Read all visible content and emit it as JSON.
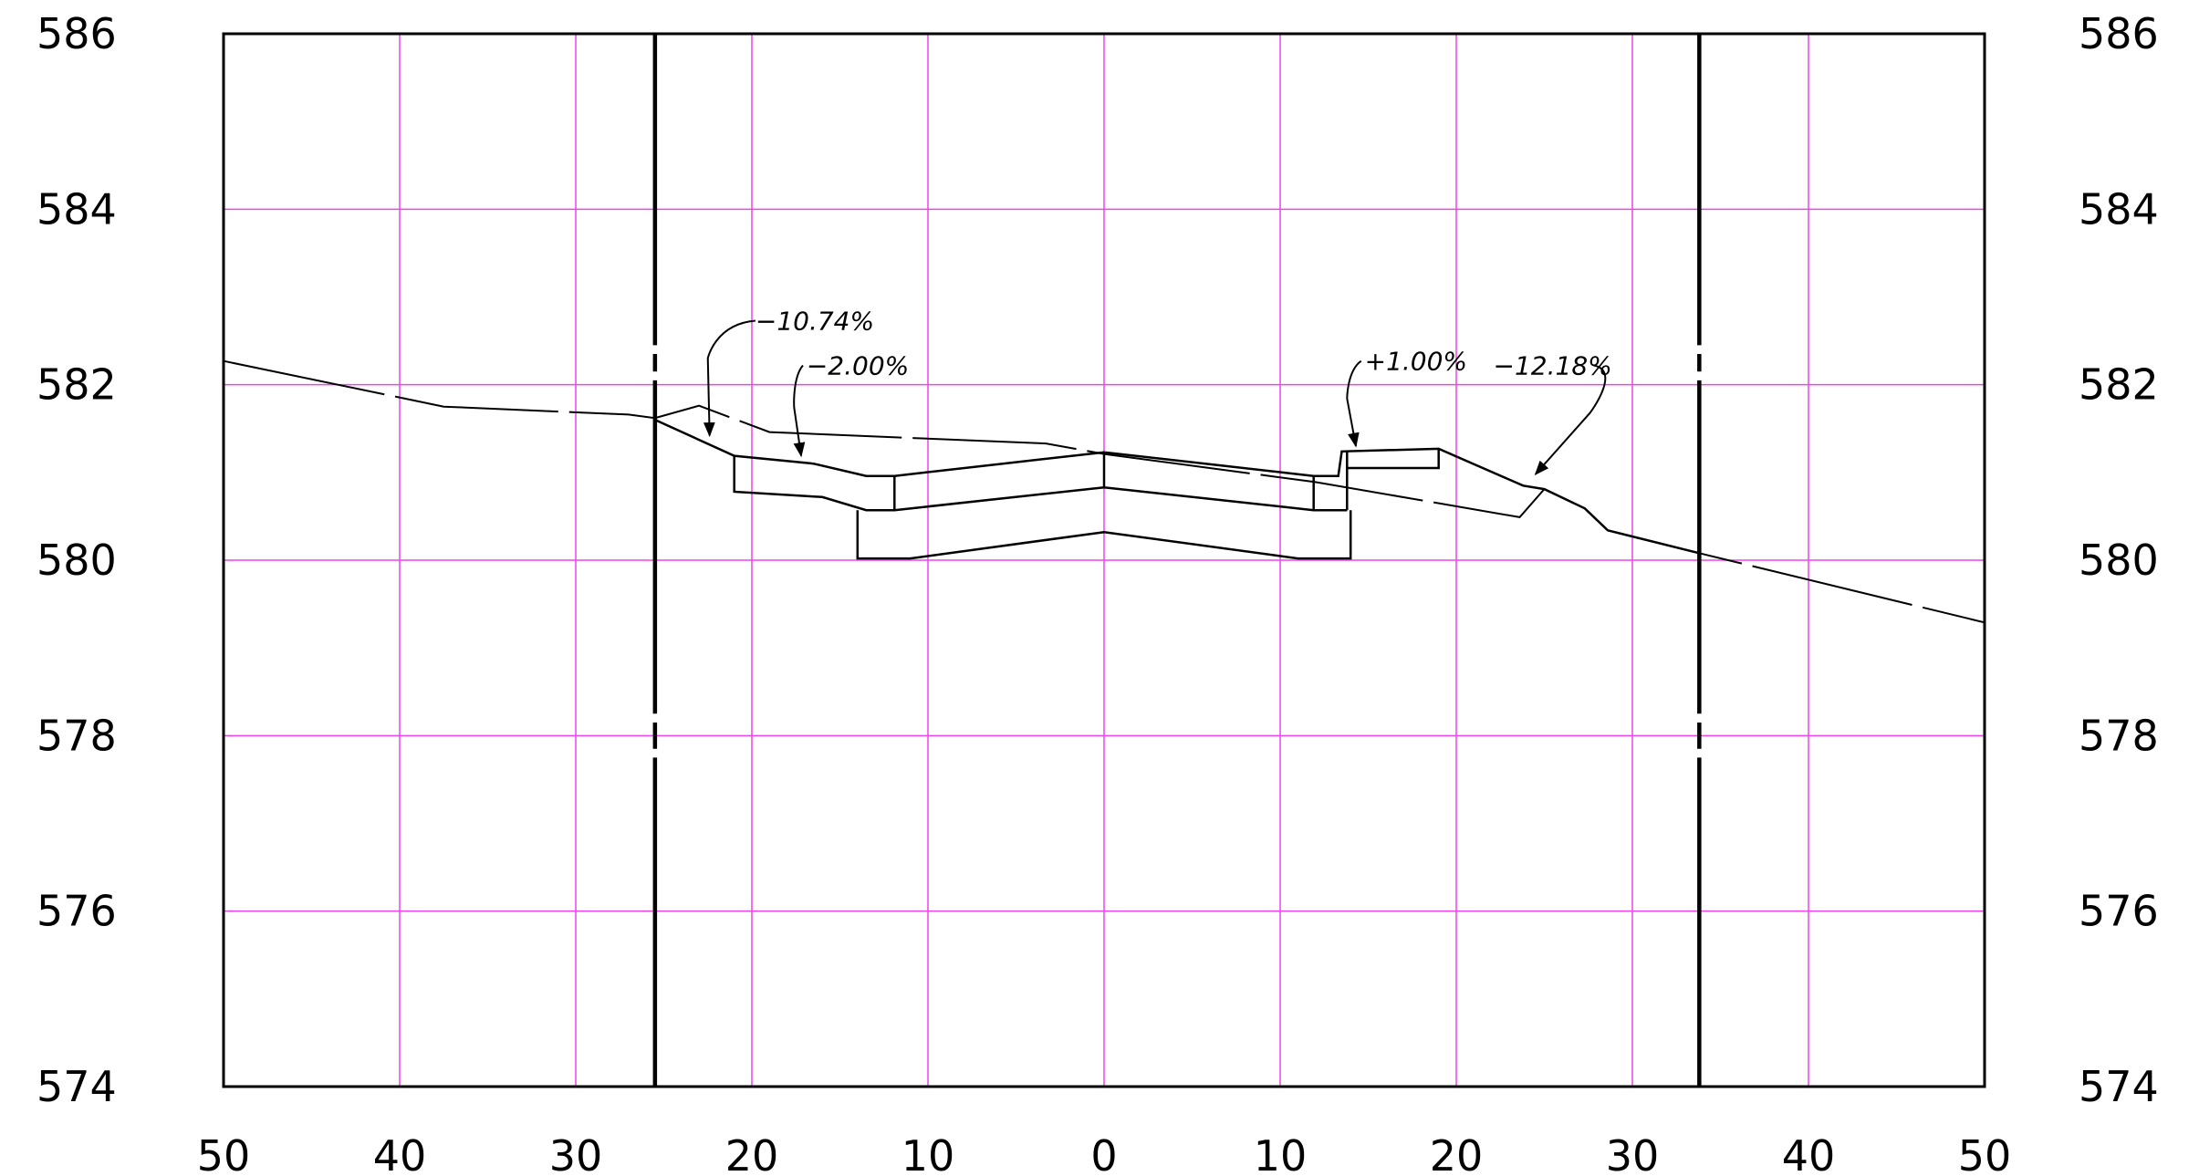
{
  "chart_data": {
    "type": "cross-section",
    "x_ticks": [
      {
        "x": -50,
        "label": "50"
      },
      {
        "x": -40,
        "label": "40"
      },
      {
        "x": -30,
        "label": "30"
      },
      {
        "x": -20,
        "label": "20"
      },
      {
        "x": -10,
        "label": "10"
      },
      {
        "x": 0,
        "label": "0"
      },
      {
        "x": 10,
        "label": "10"
      },
      {
        "x": 20,
        "label": "20"
      },
      {
        "x": 30,
        "label": "30"
      },
      {
        "x": 40,
        "label": "40"
      },
      {
        "x": 50,
        "label": "50"
      }
    ],
    "y_ticks": [
      574,
      576,
      578,
      580,
      582,
      584,
      586
    ],
    "xlim": [
      -50,
      50
    ],
    "ylim": [
      574,
      586
    ],
    "grid": true,
    "colors": {
      "grid": "#ee44ee",
      "line": "#000000",
      "background": "#ffffff"
    },
    "row_limits": [
      -25.5,
      33.8
    ],
    "existing_ground": [
      [
        -50,
        582.27
      ],
      [
        -37.5,
        581.75
      ],
      [
        -27,
        581.66
      ],
      [
        -25.5,
        581.62
      ],
      [
        -23,
        581.76
      ],
      [
        -19,
        581.46
      ],
      [
        -3.3,
        581.33
      ],
      [
        0,
        581.21
      ],
      [
        12,
        580.89
      ],
      [
        23.6,
        580.49
      ],
      [
        25,
        580.81
      ],
      [
        27.3,
        580.59
      ],
      [
        28.6,
        580.34
      ],
      [
        33.8,
        580.08
      ],
      [
        50,
        579.29
      ]
    ],
    "design_surface": [
      [
        -25.5,
        581.6
      ],
      [
        -21,
        581.19
      ],
      [
        -17.5,
        581.12
      ],
      [
        -16.5,
        581.1
      ],
      [
        -13.5,
        580.96
      ],
      [
        -11.9,
        580.96
      ],
      [
        0,
        581.23
      ],
      [
        11.9,
        580.96
      ],
      [
        13.3,
        580.96
      ],
      [
        13.5,
        581.24
      ],
      [
        19,
        581.27
      ],
      [
        23.8,
        580.85
      ],
      [
        25,
        580.81
      ],
      [
        27.3,
        580.59
      ],
      [
        28.6,
        580.34
      ],
      [
        33.8,
        580.08
      ]
    ],
    "structure_polylines": [
      [
        [
          -21,
          581.19
        ],
        [
          -21,
          580.78
        ],
        [
          -16,
          580.72
        ],
        [
          -13.5,
          580.57
        ],
        [
          -11.9,
          580.57
        ],
        [
          0,
          580.83
        ],
        [
          11.9,
          580.57
        ],
        [
          13.8,
          580.57
        ]
      ],
      [
        [
          -14,
          580.57
        ],
        [
          -14,
          580.02
        ],
        [
          -11,
          580.02
        ],
        [
          0,
          580.32
        ],
        [
          11,
          580.02
        ],
        [
          14,
          580.02
        ],
        [
          14,
          580.57
        ]
      ],
      [
        [
          -11.9,
          580.96
        ],
        [
          -11.9,
          580.57
        ]
      ],
      [
        [
          0,
          581.23
        ],
        [
          0,
          580.83
        ]
      ],
      [
        [
          11.9,
          580.96
        ],
        [
          11.9,
          580.57
        ]
      ],
      [
        [
          13.8,
          581.24
        ],
        [
          13.8,
          580.57
        ]
      ],
      [
        [
          19,
          581.27
        ],
        [
          19,
          581.05
        ],
        [
          13.8,
          581.05
        ]
      ]
    ],
    "annotations": [
      {
        "text": "−10.74%",
        "leader": [
          [
            -19.8,
            582.73
          ],
          [
            -22.1,
            582.69
          ],
          [
            -22.5,
            582.3
          ],
          [
            -22.4,
            581.42
          ]
        ],
        "text_at": [
          -19.8,
          582.73
        ]
      },
      {
        "text": "−2.00%",
        "leader": [
          [
            -17.1,
            582.22
          ],
          [
            -17.7,
            582.08
          ],
          [
            -17.6,
            581.74
          ],
          [
            -17.2,
            581.19
          ]
        ],
        "text_at": [
          -16.9,
          582.22
        ]
      },
      {
        "text": "+1.00%",
        "leader": [
          [
            14.6,
            582.27
          ],
          [
            13.8,
            582.16
          ],
          [
            13.8,
            581.84
          ],
          [
            14.3,
            581.3
          ]
        ],
        "text_at": [
          14.8,
          582.27
        ]
      },
      {
        "text": "−12.18%",
        "leader": [
          [
            27.8,
            582.22
          ],
          [
            29.4,
            582.16
          ],
          [
            27.6,
            581.68
          ],
          [
            24.5,
            580.98
          ]
        ],
        "text_at": [
          22.1,
          582.22
        ]
      }
    ]
  }
}
